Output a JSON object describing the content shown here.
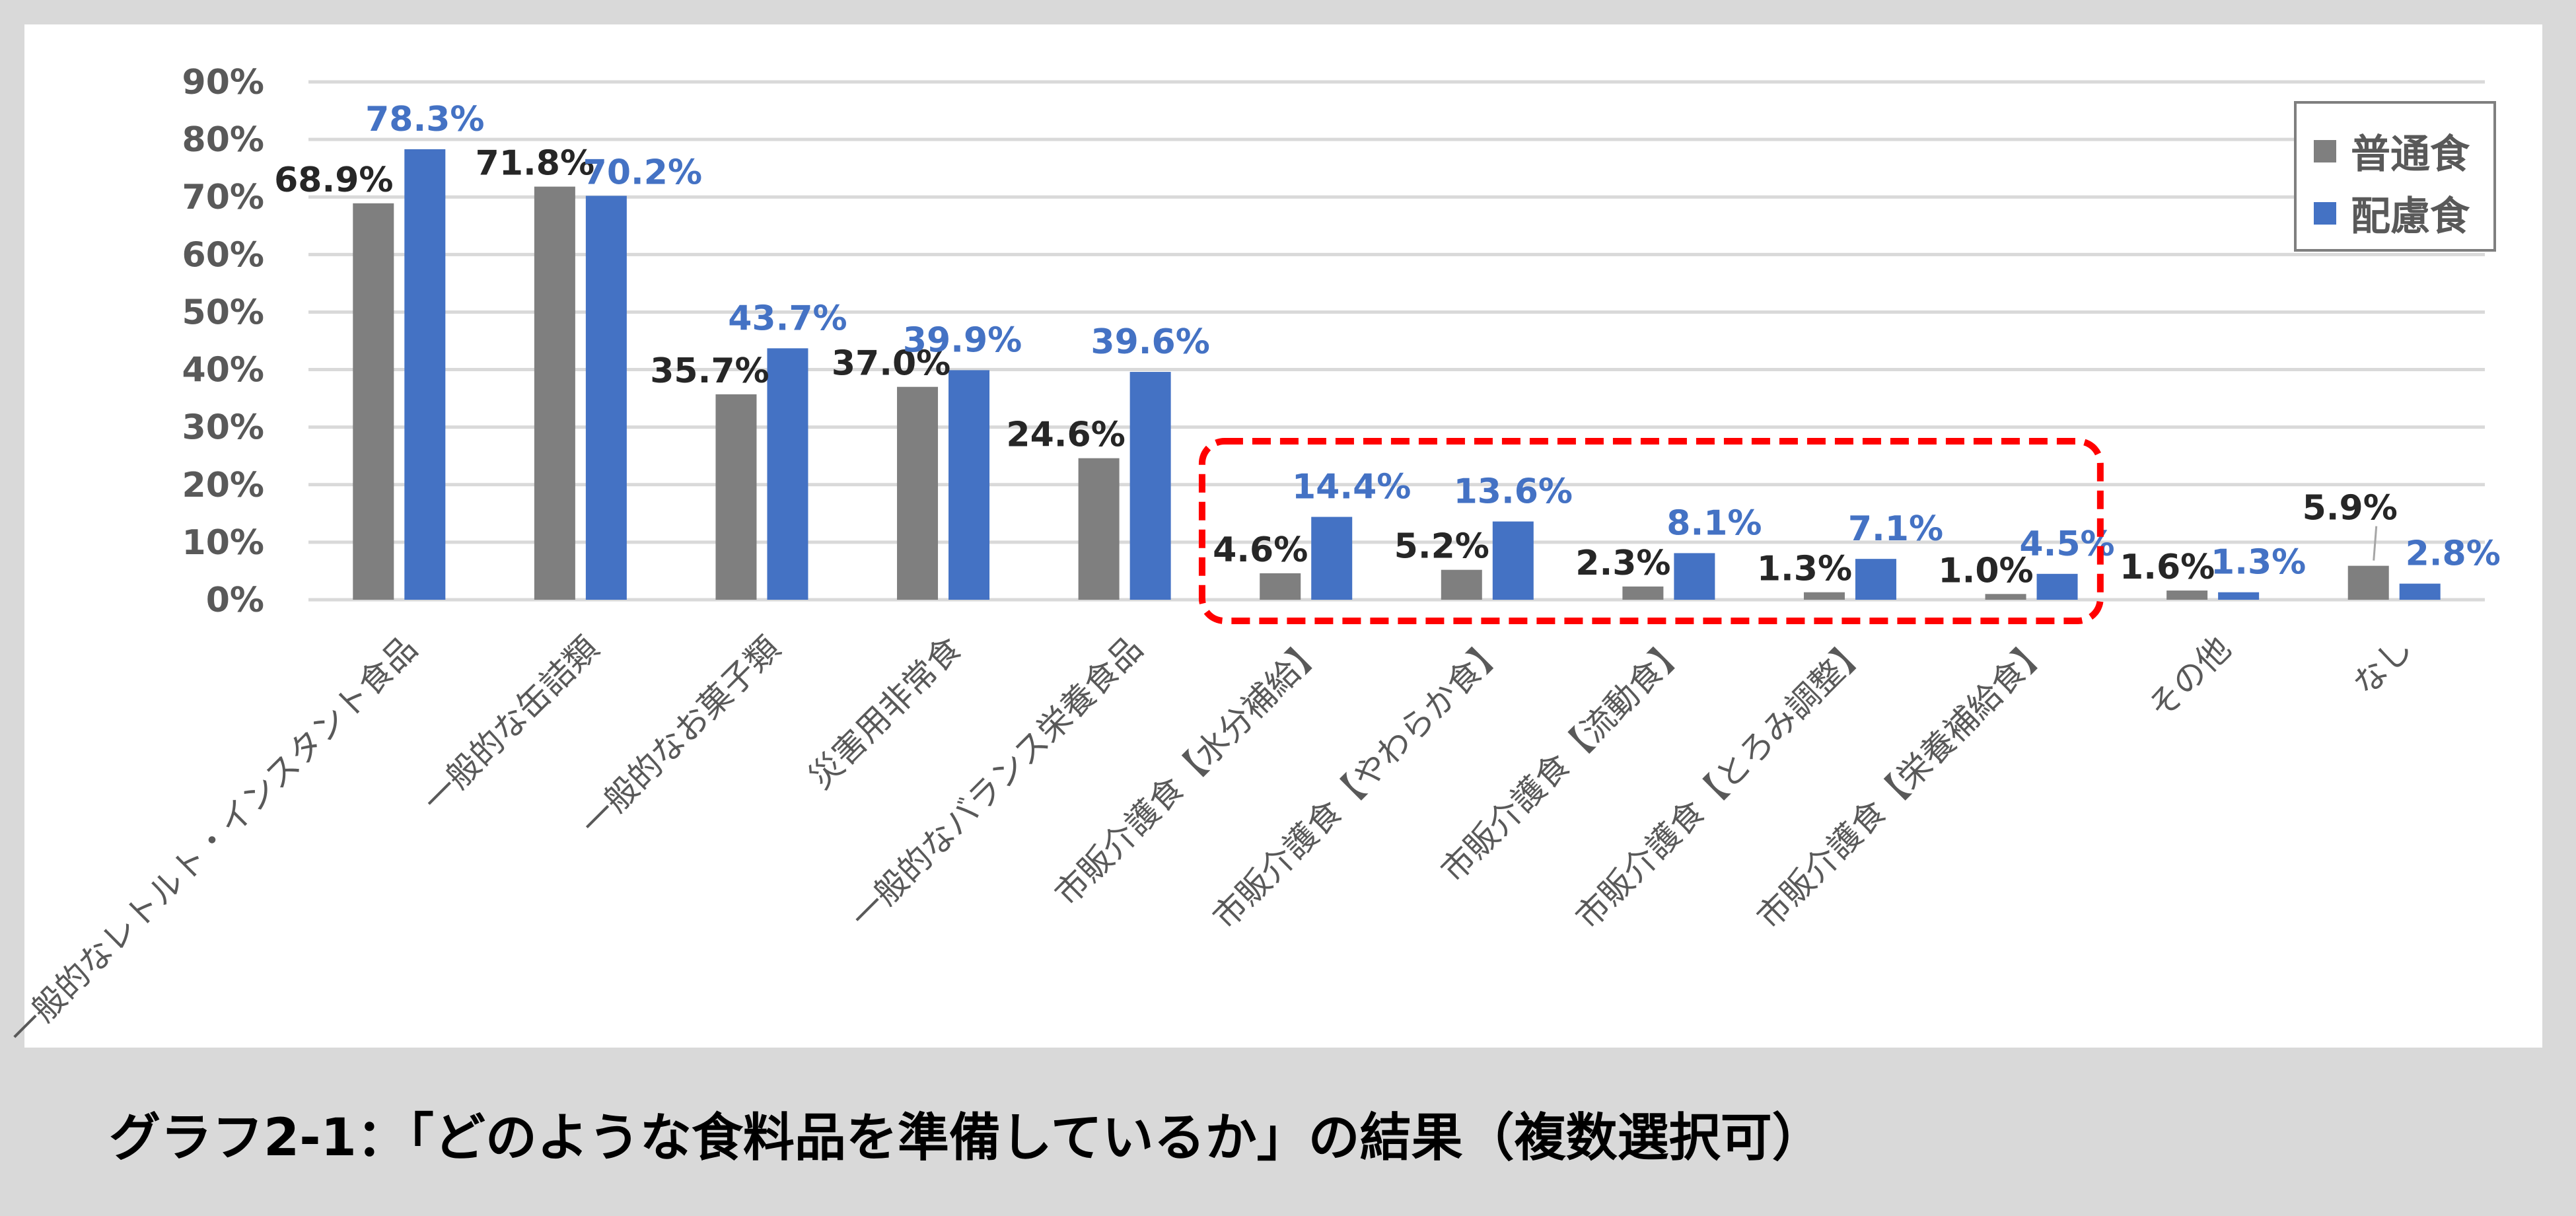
{
  "caption": "グラフ2-1：「どのような食料品を準備しているか」の結果（複数選択可）",
  "colors": {
    "background": "#d9d9d9",
    "panel": "#ffffff",
    "series_normal": "#7f7f7f",
    "series_special": "#4472c4",
    "label_normal": "#262626",
    "label_special": "#4472c4",
    "gridline": "#d9d9d9",
    "highlight_box": "#ff0000"
  },
  "legend": {
    "items": [
      {
        "label": "普通食",
        "color": "#7f7f7f"
      },
      {
        "label": "配慮食",
        "color": "#4472c4"
      }
    ]
  },
  "chart_data": {
    "type": "bar",
    "title": "グラフ2-1：「どのような食料品を準備しているか」の結果（複数選択可）",
    "xlabel": "",
    "ylabel": "",
    "ylim": [
      0,
      90
    ],
    "yticks": [
      "0%",
      "10%",
      "20%",
      "30%",
      "40%",
      "50%",
      "60%",
      "70%",
      "80%",
      "90%"
    ],
    "grid": true,
    "legend_position": "top-right",
    "categories": [
      "一般的なレトルト・インスタント食品",
      "一般的な缶詰類",
      "一般的なお菓子類",
      "災害用非常食",
      "一般的なバランス栄養食品",
      "市販介護食【水分補給】",
      "市販介護食【やわらか食】",
      "市販介護食【流動食】",
      "市販介護食【とろみ調整】",
      "市販介護食【栄養補給食】",
      "その他",
      "なし"
    ],
    "series": [
      {
        "name": "普通食",
        "values": [
          68.9,
          71.8,
          35.7,
          37.0,
          24.6,
          4.6,
          5.2,
          2.3,
          1.3,
          1.0,
          1.6,
          5.9
        ],
        "labels": [
          "68.9%",
          "71.8%",
          "35.7%",
          "37.0%",
          "24.6%",
          "4.6%",
          "5.2%",
          "2.3%",
          "1.3%",
          "1.0%",
          "1.6%",
          "5.9%"
        ]
      },
      {
        "name": "配慮食",
        "values": [
          78.3,
          70.2,
          43.7,
          39.9,
          39.6,
          14.4,
          13.6,
          8.1,
          7.1,
          4.5,
          1.3,
          2.8
        ],
        "labels": [
          "78.3%",
          "70.2%",
          "43.7%",
          "39.9%",
          "39.6%",
          "14.4%",
          "13.6%",
          "8.1%",
          "7.1%",
          "4.5%",
          "1.3%",
          "2.8%"
        ]
      }
    ],
    "annotations": [
      {
        "type": "dashed-rounded-box",
        "color": "#ff0000",
        "covers_categories": [
          5,
          6,
          7,
          8,
          9
        ]
      }
    ]
  }
}
